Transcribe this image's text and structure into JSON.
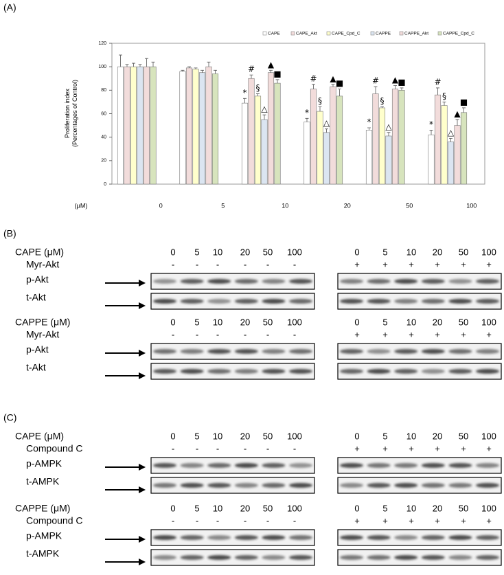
{
  "panels": {
    "a": "(A)",
    "b": "(B)",
    "c": "(C)"
  },
  "chart_data": {
    "type": "bar",
    "y_label": [
      "Proliferation index",
      "(Percentages of Control)"
    ],
    "x_unit": "(μM)",
    "categories": [
      "0",
      "5",
      "10",
      "20",
      "50",
      "100"
    ],
    "ylim": [
      0,
      120
    ],
    "yticks": [
      0,
      20,
      40,
      60,
      80,
      100,
      120
    ],
    "series": [
      {
        "name": "CAPE",
        "color": "#ffffff",
        "values": [
          100,
          96,
          69,
          53,
          46,
          42
        ],
        "errors": [
          10,
          1,
          4,
          3,
          2,
          4
        ],
        "annotations": [
          null,
          null,
          "*",
          "*",
          "*",
          "*"
        ]
      },
      {
        "name": "CAPE_Akt",
        "color": "#f2dcdb",
        "values": [
          100,
          99,
          90,
          81,
          77,
          76
        ],
        "errors": [
          2,
          1,
          3,
          4,
          6,
          6
        ],
        "annotations": [
          null,
          null,
          "#",
          "#",
          "#",
          "#"
        ]
      },
      {
        "name": "CAPE_Cpd_C",
        "color": "#ffffcc",
        "values": [
          100,
          98,
          75,
          62,
          65,
          67
        ],
        "errors": [
          3,
          1,
          2,
          4,
          1,
          3
        ],
        "annotations": [
          null,
          null,
          "§",
          "§",
          "§",
          "§"
        ]
      },
      {
        "name": "CAPPE",
        "color": "#dbe5f1",
        "values": [
          100,
          95,
          55,
          44,
          41,
          36
        ],
        "errors": [
          2,
          2,
          4,
          3,
          3,
          3
        ],
        "annotations": [
          null,
          null,
          "△",
          "△",
          "△",
          "△"
        ]
      },
      {
        "name": "CAPPE_Akt",
        "color": "#f2dcdb",
        "values": [
          100,
          100,
          95,
          83,
          81,
          50
        ],
        "errors": [
          7,
          4,
          2,
          2,
          3,
          5
        ],
        "annotations": [
          null,
          null,
          "▲",
          "▲",
          "▲",
          "▲"
        ]
      },
      {
        "name": "CAPPE_Cpd_C",
        "color": "#d7e4bd",
        "values": [
          100,
          94,
          86,
          75,
          80,
          61
        ],
        "errors": [
          4,
          3,
          3,
          6,
          2,
          4
        ],
        "annotations": [
          null,
          null,
          "■",
          "■",
          "■",
          "■"
        ]
      }
    ]
  },
  "blots": [
    {
      "treatment": "CAPE (μM)",
      "condition": "Myr-Akt",
      "doses": [
        "0",
        "5",
        "10",
        "20",
        "50",
        "100"
      ],
      "left_signs": [
        "-",
        "-",
        "-",
        "-",
        "-",
        "-"
      ],
      "right_signs": [
        "+",
        "+",
        "+",
        "+",
        "+",
        "+"
      ],
      "rows": [
        "p-Akt",
        "t-Akt"
      ]
    },
    {
      "treatment": "CAPPE (μM)",
      "condition": "Myr-Akt",
      "doses": [
        "0",
        "5",
        "10",
        "20",
        "50",
        "100"
      ],
      "left_signs": [
        "-",
        "-",
        "-",
        "-",
        "-",
        "-"
      ],
      "right_signs": [
        "+",
        "+",
        "+",
        "+",
        "+",
        "+"
      ],
      "rows": [
        "p-Akt",
        "t-Akt"
      ]
    },
    {
      "treatment": "CAPE (μM)",
      "condition": "Compound C",
      "doses": [
        "0",
        "5",
        "10",
        "20",
        "50",
        "100"
      ],
      "left_signs": [
        "-",
        "-",
        "-",
        "-",
        "-",
        "-"
      ],
      "right_signs": [
        "+",
        "+",
        "+",
        "+",
        "+",
        "+"
      ],
      "rows": [
        "p-AMPK",
        "t-AMPK"
      ]
    },
    {
      "treatment": "CAPPE (μM)",
      "condition": "Compound C",
      "doses": [
        "0",
        "5",
        "10",
        "20",
        "50",
        "100"
      ],
      "left_signs": [
        "-",
        "-",
        "-",
        "-",
        "-",
        "-"
      ],
      "right_signs": [
        "+",
        "+",
        "+",
        "+",
        "+",
        "+"
      ],
      "rows": [
        "p-AMPK",
        "t-AMPK"
      ]
    }
  ]
}
